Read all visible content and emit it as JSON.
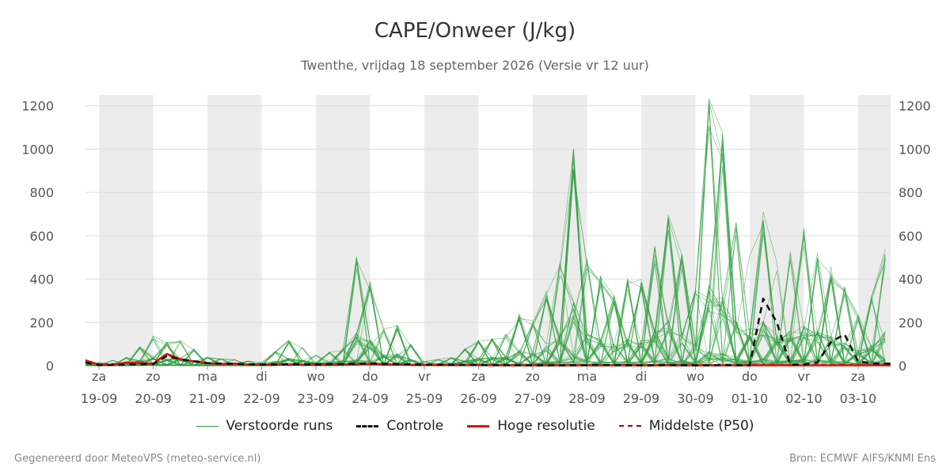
{
  "chart_data": {
    "type": "line",
    "title": "CAPE/Onweer (J/kg)",
    "subtitle": "Twenthe, vrijdag 18 september 2026 (Versie vr 12 uur)",
    "ylim": [
      0,
      1250
    ],
    "y_ticks": [
      0,
      200,
      400,
      600,
      800,
      1000,
      1200
    ],
    "x_range_days": [
      -0.25,
      14.6
    ],
    "x_ticks": [
      {
        "day": "za",
        "date": "19-09"
      },
      {
        "day": "zo",
        "date": "20-09"
      },
      {
        "day": "ma",
        "date": "21-09"
      },
      {
        "day": "di",
        "date": "22-09"
      },
      {
        "day": "wo",
        "date": "23-09"
      },
      {
        "day": "do",
        "date": "24-09"
      },
      {
        "day": "vr",
        "date": "25-09"
      },
      {
        "day": "za",
        "date": "26-09"
      },
      {
        "day": "zo",
        "date": "27-09"
      },
      {
        "day": "ma",
        "date": "28-09"
      },
      {
        "day": "di",
        "date": "29-09"
      },
      {
        "day": "wo",
        "date": "30-09"
      },
      {
        "day": "do",
        "date": "01-10"
      },
      {
        "day": "vr",
        "date": "02-10"
      },
      {
        "day": "za",
        "date": "03-10"
      }
    ],
    "weekend_shading": true,
    "grid": true,
    "colors": {
      "ensemble": "#2e9e3e",
      "control": "#111111",
      "hires": "#e01010",
      "median": "#aa0000",
      "shade": "#ececec",
      "grid": "#dddddd"
    },
    "series": [
      {
        "name": "Controle",
        "style": "dashed",
        "points": [
          [
            -0.25,
            15
          ],
          [
            0,
            3
          ],
          [
            0.5,
            5
          ],
          [
            1,
            8
          ],
          [
            1.25,
            45
          ],
          [
            1.5,
            30
          ],
          [
            2,
            12
          ],
          [
            2.5,
            8
          ],
          [
            3,
            5
          ],
          [
            3.5,
            7
          ],
          [
            4,
            6
          ],
          [
            4.5,
            8
          ],
          [
            5,
            10
          ],
          [
            5.5,
            8
          ],
          [
            6,
            5
          ],
          [
            6.5,
            4
          ],
          [
            7,
            3
          ],
          [
            7.5,
            3
          ],
          [
            8,
            2
          ],
          [
            8.5,
            2
          ],
          [
            9,
            3
          ],
          [
            9.5,
            3
          ],
          [
            10,
            2
          ],
          [
            10.5,
            3
          ],
          [
            11,
            2
          ],
          [
            11.5,
            3
          ],
          [
            12,
            2
          ],
          [
            12.25,
            310
          ],
          [
            12.5,
            200
          ],
          [
            12.75,
            5
          ],
          [
            13,
            5
          ],
          [
            13.25,
            15
          ],
          [
            13.5,
            110
          ],
          [
            13.75,
            145
          ],
          [
            14,
            20
          ],
          [
            14.3,
            10
          ],
          [
            14.6,
            10
          ]
        ]
      },
      {
        "name": "Hoge resolutie",
        "style": "solid",
        "points": [
          [
            -0.25,
            25
          ],
          [
            0,
            5
          ],
          [
            0.25,
            3
          ],
          [
            0.5,
            15
          ],
          [
            0.75,
            12
          ],
          [
            1,
            10
          ],
          [
            1.25,
            55
          ],
          [
            1.5,
            30
          ],
          [
            1.75,
            20
          ],
          [
            2,
            12
          ],
          [
            2.25,
            8
          ],
          [
            2.5,
            10
          ],
          [
            2.75,
            5
          ],
          [
            3,
            5
          ],
          [
            3.5,
            6
          ],
          [
            4,
            5
          ],
          [
            4.5,
            5
          ],
          [
            5,
            7
          ],
          [
            5.5,
            5
          ],
          [
            6,
            4
          ],
          [
            6.5,
            3
          ],
          [
            7,
            3
          ],
          [
            7.5,
            2
          ],
          [
            8,
            2
          ],
          [
            8.5,
            2
          ],
          [
            9,
            2
          ],
          [
            9.5,
            2
          ],
          [
            10,
            2
          ],
          [
            10.5,
            2
          ],
          [
            11,
            2
          ],
          [
            11.5,
            2
          ],
          [
            12,
            2
          ],
          [
            12.5,
            2
          ],
          [
            13,
            2
          ],
          [
            13.5,
            2
          ],
          [
            14,
            2
          ],
          [
            14.6,
            2
          ]
        ]
      },
      {
        "name": "Middelste (P50)",
        "style": "dashed",
        "points": [
          [
            -0.25,
            20
          ],
          [
            0,
            5
          ],
          [
            0.5,
            12
          ],
          [
            1,
            10
          ],
          [
            1.25,
            50
          ],
          [
            1.5,
            28
          ],
          [
            2,
            12
          ],
          [
            2.5,
            8
          ],
          [
            3,
            5
          ],
          [
            3.5,
            6
          ],
          [
            4,
            6
          ],
          [
            4.5,
            8
          ],
          [
            5,
            10
          ],
          [
            5.5,
            8
          ],
          [
            6,
            5
          ],
          [
            6.5,
            4
          ],
          [
            7,
            3
          ],
          [
            7.5,
            3
          ],
          [
            8,
            2
          ],
          [
            8.5,
            3
          ],
          [
            9,
            3
          ],
          [
            9.5,
            4
          ],
          [
            10,
            3
          ],
          [
            10.5,
            4
          ],
          [
            11,
            3
          ],
          [
            11.5,
            5
          ],
          [
            12,
            4
          ],
          [
            12.5,
            5
          ],
          [
            13,
            4
          ],
          [
            13.5,
            5
          ],
          [
            14,
            4
          ],
          [
            14.6,
            4
          ]
        ]
      }
    ]
  },
  "legend": [
    {
      "key": "ensemble",
      "label": "Verstoorde runs"
    },
    {
      "key": "control",
      "label": "Controle"
    },
    {
      "key": "hires",
      "label": "Hoge resolutie"
    },
    {
      "key": "median",
      "label": "Middelste (P50)"
    }
  ],
  "footer": {
    "left": "Gegenereerd door MeteoVPS (meteo-service.nl)",
    "right": "Bron: ECMWF AIFS/KNMI Ens"
  }
}
